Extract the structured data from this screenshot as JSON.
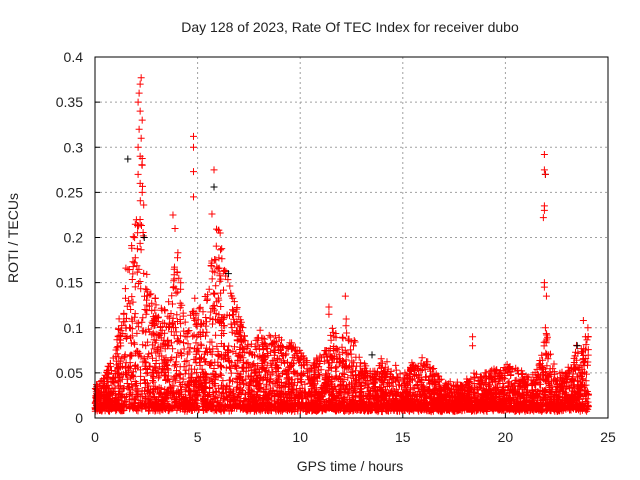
{
  "chart_data": {
    "type": "scatter",
    "title": "Day 128 of 2023, Rate Of TEC Index for receiver dubo",
    "xlabel": "GPS time / hours",
    "ylabel": "ROTI / TECUs",
    "xlim": [
      0,
      25
    ],
    "ylim": [
      0,
      0.4
    ],
    "xticks": [
      "0",
      "5",
      "10",
      "15",
      "20",
      "25"
    ],
    "yticks": [
      "0",
      "0.05",
      "0.1",
      "0.15",
      "0.2",
      "0.25",
      "0.3",
      "0.35",
      "0.4"
    ],
    "grid": true,
    "marker": "plus",
    "colors": {
      "main": "#ff0000",
      "secondary": "#000000",
      "grid": "#a0a0a0"
    },
    "dense_band_upper_envelope": [
      [
        0,
        0.035
      ],
      [
        0.5,
        0.05
      ],
      [
        1,
        0.08
      ],
      [
        1.5,
        0.17
      ],
      [
        2,
        0.22
      ],
      [
        2.3,
        0.3
      ],
      [
        2.6,
        0.15
      ],
      [
        3,
        0.13
      ],
      [
        3.5,
        0.12
      ],
      [
        4,
        0.19
      ],
      [
        4.5,
        0.1
      ],
      [
        4.8,
        0.14
      ],
      [
        5,
        0.12
      ],
      [
        5.5,
        0.14
      ],
      [
        5.8,
        0.22
      ],
      [
        6.2,
        0.2
      ],
      [
        6.5,
        0.16
      ],
      [
        7,
        0.12
      ],
      [
        7.5,
        0.08
      ],
      [
        8,
        0.1
      ],
      [
        9,
        0.09
      ],
      [
        10,
        0.08
      ],
      [
        10.5,
        0.06
      ],
      [
        11,
        0.07
      ],
      [
        11.5,
        0.1
      ],
      [
        12,
        0.09
      ],
      [
        12.3,
        0.12
      ],
      [
        12.8,
        0.07
      ],
      [
        13.5,
        0.05
      ],
      [
        14,
        0.07
      ],
      [
        15,
        0.05
      ],
      [
        15.5,
        0.06
      ],
      [
        16,
        0.07
      ],
      [
        17,
        0.04
      ],
      [
        18,
        0.04
      ],
      [
        18.5,
        0.05
      ],
      [
        19,
        0.05
      ],
      [
        20,
        0.06
      ],
      [
        21,
        0.05
      ],
      [
        21.5,
        0.05
      ],
      [
        22,
        0.1
      ],
      [
        22.3,
        0.06
      ],
      [
        23,
        0.05
      ],
      [
        23.5,
        0.08
      ],
      [
        24,
        0.1
      ]
    ],
    "dense_band_lower": 0.01,
    "outliers": [
      [
        2.25,
        0.377
      ],
      [
        2.2,
        0.37
      ],
      [
        2.15,
        0.36
      ],
      [
        2.1,
        0.35
      ],
      [
        2.2,
        0.34
      ],
      [
        2.3,
        0.33
      ],
      [
        2.15,
        0.32
      ],
      [
        2.25,
        0.31
      ],
      [
        2.1,
        0.3
      ],
      [
        2.2,
        0.29
      ],
      [
        2.3,
        0.28
      ],
      [
        2.1,
        0.27
      ],
      [
        2.2,
        0.26
      ],
      [
        2.3,
        0.25
      ],
      [
        4.8,
        0.312
      ],
      [
        4.8,
        0.3
      ],
      [
        4.8,
        0.273
      ],
      [
        4.8,
        0.245
      ],
      [
        5.8,
        0.275
      ],
      [
        5.7,
        0.226
      ],
      [
        3.8,
        0.225
      ],
      [
        3.9,
        0.21
      ],
      [
        6.1,
        0.205
      ],
      [
        11.4,
        0.123
      ],
      [
        11.4,
        0.115
      ],
      [
        12.2,
        0.135
      ],
      [
        18.4,
        0.09
      ],
      [
        18.4,
        0.08
      ],
      [
        21.9,
        0.292
      ],
      [
        21.9,
        0.275
      ],
      [
        21.95,
        0.27
      ],
      [
        21.9,
        0.235
      ],
      [
        21.9,
        0.23
      ],
      [
        21.85,
        0.222
      ],
      [
        21.9,
        0.15
      ],
      [
        21.9,
        0.145
      ],
      [
        22.0,
        0.135
      ],
      [
        21.95,
        0.1
      ],
      [
        23.8,
        0.108
      ],
      [
        23.9,
        0.09
      ]
    ],
    "black_points": [
      [
        1.6,
        0.287
      ],
      [
        5.8,
        0.256
      ],
      [
        21.95,
        0.27
      ],
      [
        6.5,
        0.16
      ],
      [
        2.4,
        0.2
      ],
      [
        13.5,
        0.07
      ],
      [
        23.5,
        0.08
      ]
    ]
  }
}
